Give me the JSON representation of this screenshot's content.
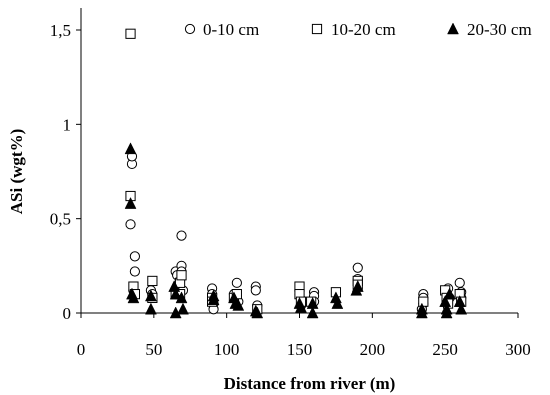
{
  "chart_data": {
    "type": "scatter",
    "xlabel": "Distance from river (m)",
    "ylabel": "ASi (wgt%)",
    "xlim": [
      0,
      300
    ],
    "ylim": [
      0,
      1.5
    ],
    "xticks": [
      0,
      50,
      100,
      150,
      200,
      250,
      300
    ],
    "xtick_labels": [
      "0",
      "50",
      "100",
      "150",
      "200",
      "250",
      "300"
    ],
    "yticks": [
      0,
      0.5,
      1,
      1.5
    ],
    "ytick_labels": [
      "0",
      "0,5",
      "1",
      "1,5"
    ],
    "grid": false,
    "legend_position": "top-right",
    "series": [
      {
        "name": "0-10 cm",
        "marker": "open-circle",
        "color": "#000000",
        "points": [
          [
            34,
            0.47
          ],
          [
            35,
            0.79
          ],
          [
            35,
            0.83
          ],
          [
            37,
            0.3
          ],
          [
            37,
            0.22
          ],
          [
            36,
            0.12
          ],
          [
            48,
            0.12
          ],
          [
            49,
            0.1
          ],
          [
            65,
            0.22
          ],
          [
            66,
            0.2
          ],
          [
            69,
            0.41
          ],
          [
            69,
            0.25
          ],
          [
            69,
            0.22
          ],
          [
            68,
            0.17
          ],
          [
            70,
            0.12
          ],
          [
            90,
            0.13
          ],
          [
            90,
            0.1
          ],
          [
            91,
            0.05
          ],
          [
            91,
            0.02
          ],
          [
            105,
            0.1
          ],
          [
            107,
            0.16
          ],
          [
            108,
            0.06
          ],
          [
            120,
            0.14
          ],
          [
            120,
            0.12
          ],
          [
            121,
            0.04
          ],
          [
            150,
            0.1
          ],
          [
            151,
            0.07
          ],
          [
            151,
            0.04
          ],
          [
            160,
            0.11
          ],
          [
            160,
            0.09
          ],
          [
            160,
            0.06
          ],
          [
            190,
            0.24
          ],
          [
            190,
            0.18
          ],
          [
            235,
            0.1
          ],
          [
            235,
            0.08
          ],
          [
            235,
            0.05
          ],
          [
            234,
            0.02
          ],
          [
            250,
            0.12
          ],
          [
            251,
            0.1
          ],
          [
            252,
            0.13
          ],
          [
            253,
            0.08
          ],
          [
            260,
            0.16
          ],
          [
            261,
            0.11
          ],
          [
            261,
            0.08
          ]
        ]
      },
      {
        "name": "10-20 cm",
        "marker": "open-square",
        "color": "#000000",
        "points": [
          [
            34,
            1.48
          ],
          [
            34,
            0.62
          ],
          [
            36,
            0.14
          ],
          [
            37,
            0.1
          ],
          [
            49,
            0.17
          ],
          [
            49,
            0.08
          ],
          [
            65,
            0.1
          ],
          [
            68,
            0.16
          ],
          [
            69,
            0.2
          ],
          [
            68,
            0.1
          ],
          [
            90,
            0.08
          ],
          [
            90,
            0.06
          ],
          [
            105,
            0.08
          ],
          [
            107,
            0.1
          ],
          [
            121,
            0.02
          ],
          [
            150,
            0.14
          ],
          [
            150,
            0.1
          ],
          [
            151,
            0.06
          ],
          [
            158,
            0.06
          ],
          [
            175,
            0.11
          ],
          [
            190,
            0.17
          ],
          [
            190,
            0.15
          ],
          [
            235,
            0.06
          ],
          [
            250,
            0.12
          ],
          [
            251,
            0.08
          ],
          [
            252,
            0.05
          ],
          [
            260,
            0.1
          ],
          [
            261,
            0.06
          ]
        ]
      },
      {
        "name": "20-30 cm",
        "marker": "filled-triangle",
        "color": "#000000",
        "points": [
          [
            34,
            0.87
          ],
          [
            34,
            0.58
          ],
          [
            35,
            0.1
          ],
          [
            36,
            0.08
          ],
          [
            48,
            0.09
          ],
          [
            48,
            0.02
          ],
          [
            64,
            0.14
          ],
          [
            65,
            0.1
          ],
          [
            65,
            0.0
          ],
          [
            70,
            0.02
          ],
          [
            69,
            0.08
          ],
          [
            91,
            0.09
          ],
          [
            91,
            0.07
          ],
          [
            105,
            0.08
          ],
          [
            106,
            0.05
          ],
          [
            108,
            0.04
          ],
          [
            120,
            0.01
          ],
          [
            121,
            0.0
          ],
          [
            150,
            0.05
          ],
          [
            151,
            0.03
          ],
          [
            159,
            0.05
          ],
          [
            159,
            0.0
          ],
          [
            175,
            0.08
          ],
          [
            176,
            0.05
          ],
          [
            189,
            0.12
          ],
          [
            190,
            0.14
          ],
          [
            234,
            0.02
          ],
          [
            234,
            0.0
          ],
          [
            250,
            0.06
          ],
          [
            251,
            0.02
          ],
          [
            251,
            0.0
          ],
          [
            253,
            0.1
          ],
          [
            260,
            0.06
          ],
          [
            261,
            0.02
          ]
        ]
      }
    ]
  }
}
